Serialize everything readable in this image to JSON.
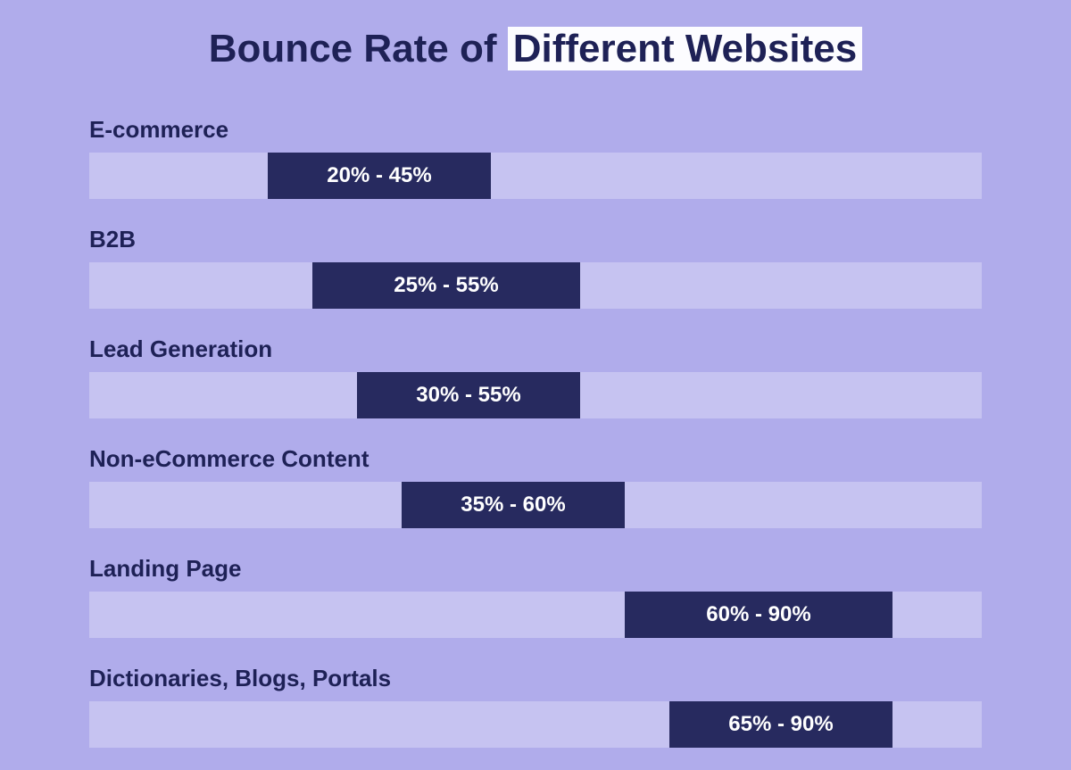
{
  "chart": {
    "title_part1": "Bounce Rate of ",
    "title_highlight": "Different Websites",
    "background_color": "#b0aceb",
    "track_color": "#c6c3f1",
    "bar_color": "#272a5f",
    "text_color": "#1e2156",
    "bar_text_color": "#ffffff",
    "highlight_bg": "#fcfcff",
    "title_fontsize": 44,
    "label_fontsize": 26,
    "bar_text_fontsize": 24,
    "x_max": 100,
    "rows": [
      {
        "label": "E-commerce",
        "min": 20,
        "max": 45,
        "range_text": "20% - 45%"
      },
      {
        "label": "B2B",
        "min": 25,
        "max": 55,
        "range_text": "25% - 55%"
      },
      {
        "label": "Lead Generation",
        "min": 30,
        "max": 55,
        "range_text": "30% - 55%"
      },
      {
        "label": "Non-eCommerce Content",
        "min": 35,
        "max": 60,
        "range_text": "35% - 60%"
      },
      {
        "label": "Landing Page",
        "min": 60,
        "max": 90,
        "range_text": "60% - 90%"
      },
      {
        "label": "Dictionaries, Blogs, Portals",
        "min": 65,
        "max": 90,
        "range_text": "65% - 90%"
      }
    ]
  }
}
